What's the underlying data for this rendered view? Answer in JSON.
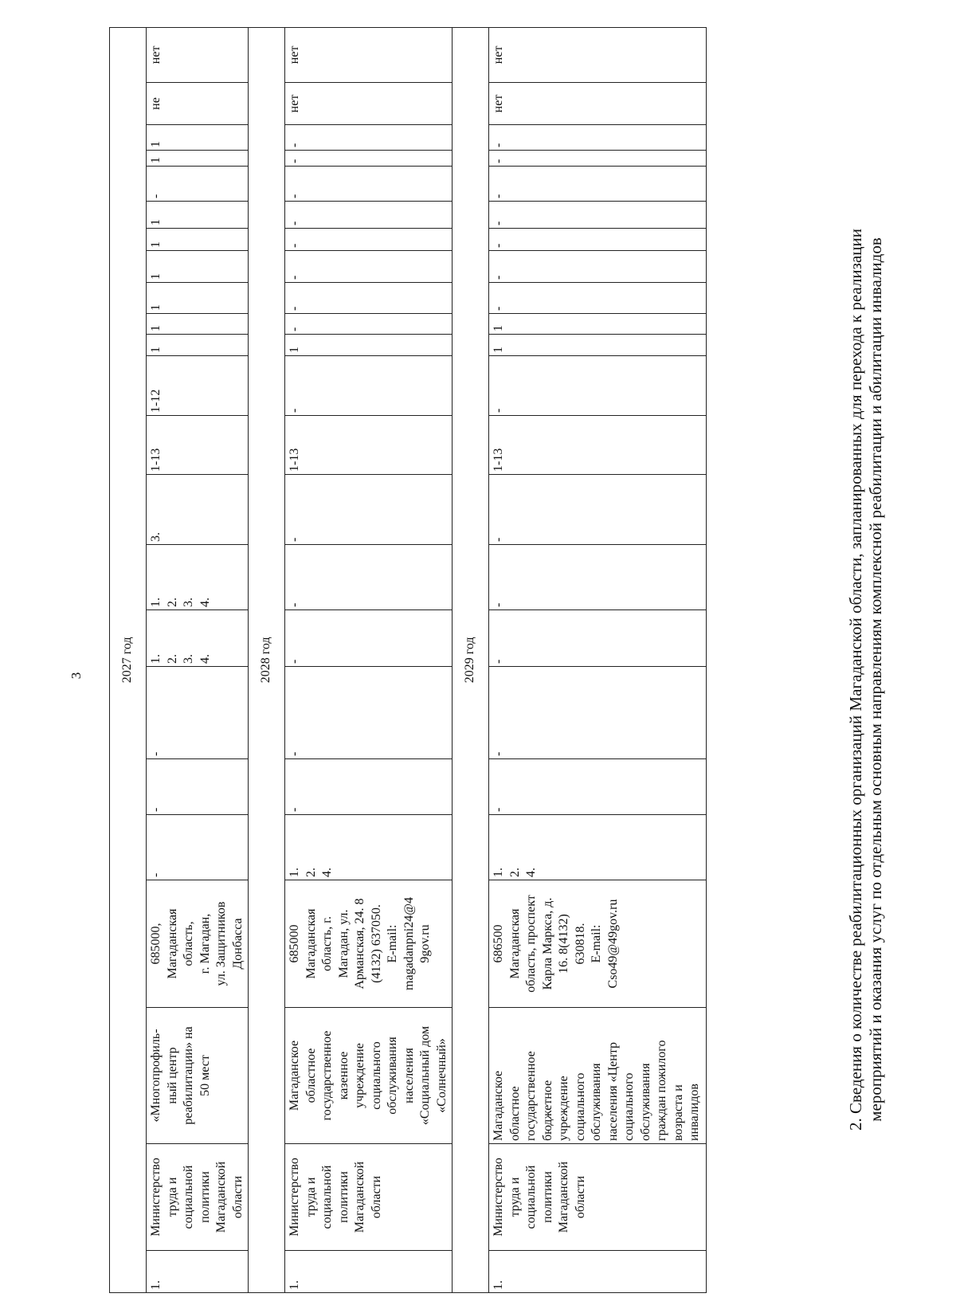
{
  "page_number": "3",
  "heading": {
    "line1": "2. Сведения о количестве реабилитационных организаций Магаданской области, запланированных для перехода к реализации",
    "line2": "мероприятий и оказания услуг по отдельным основным направлениям комплексной реабилитации и абилитации инвалидов"
  },
  "table": {
    "sections": [
      {
        "year_label": "2027 год",
        "cells": [
          "1.",
          "Министерство\nтруда и\nсоциальной\nполитики\nМагаданской\nобласти",
          "«Многопрофиль-\nный центр\nреабилитации» на\n50 мест",
          "685000,\nМагаданская\nобласть,\nг. Магадан,\nул. Защитников\nДонбасса",
          "-",
          "-",
          "-",
          "1.\n2.\n3.\n4.",
          "1.\n2.\n3.\n4.",
          "3.",
          "1-13",
          "1-12",
          "1",
          "1",
          "1",
          "1",
          "1",
          "1",
          "-",
          "1",
          "1",
          "не",
          "нет"
        ]
      },
      {
        "year_label": "2028 год",
        "cells": [
          "1.",
          "Министерство\nтруда и\nсоциальной\nполитики\nМагаданской\nобласти",
          "Магаданское\nобластное\nгосударственное\nказенное\nучреждение\nсоциального\nобслуживания\nнаселения\n«Социальный дом\n«Солнечный»",
          "685000\nМагаданская\nобласть, г.\nМагадан, ул.\nАрманская, 24. 8\n(4132) 637050.\nE-mail:\nmagadanpni24@4\n9gov.ru",
          "1.\n2.\n4.",
          "-",
          "-",
          "-",
          "-",
          "-",
          "1-13",
          "-",
          "1",
          "-",
          "-",
          "-",
          "-",
          "-",
          "-",
          "-",
          "-",
          "нет",
          "нет"
        ]
      },
      {
        "year_label": "2029 год",
        "cells": [
          "1.",
          "Министерство\nтруда и\nсоциальной\nполитики\nМагаданской\nобласти",
          "Магаданское\nобластное\nгосударственное\nбюджетное\nучреждение\nсоциального\nобслуживания\nнаселения «Центр\nсоциального\nобслуживания\nграждан пожилого\nвозраста и\nинвалидов",
          "686500\nМагаданская\nобласть, проспект\nКарла Маркса, д.\n16. 8(4132)\n630818.\nE-mail:\nCso49@49gov.ru",
          "1.\n2.\n4.",
          "-",
          "-",
          "-",
          "-",
          "-",
          "1-13",
          "-",
          "1",
          "1",
          "-",
          "-",
          "-",
          "-",
          "-",
          "-",
          "-",
          "нет",
          "нет"
        ]
      }
    ]
  }
}
